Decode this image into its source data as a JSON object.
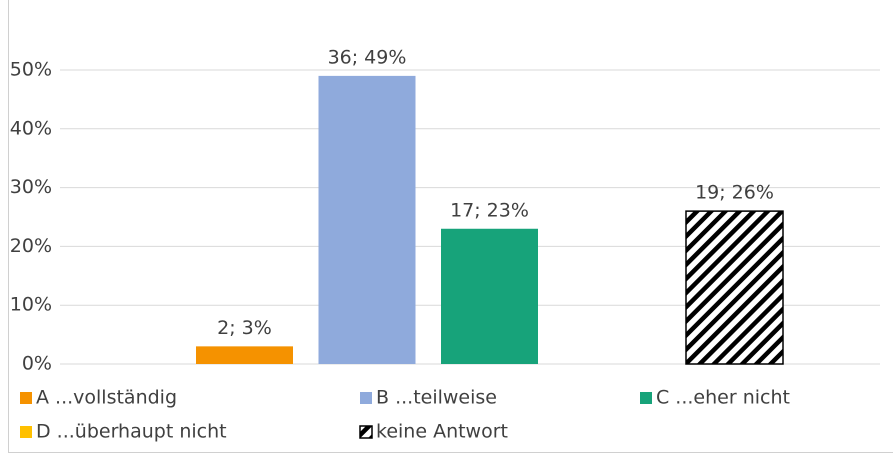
{
  "chart_data": {
    "type": "bar",
    "categories": [
      null
    ],
    "series": [
      {
        "name": "A ...vollständig",
        "color": "#f59200",
        "values": [
          3
        ],
        "value_labels": [
          "2; 3%"
        ]
      },
      {
        "name": "B ...teilweise",
        "color": "#8faadc",
        "values": [
          49
        ],
        "value_labels": [
          "36; 49%"
        ]
      },
      {
        "name": "C ...eher nicht",
        "color": "#17a37a",
        "values": [
          23
        ],
        "value_labels": [
          "17; 23%"
        ]
      },
      {
        "name": "D ...überhaupt nicht",
        "color": "#ffc000",
        "values": [
          null
        ],
        "value_labels": [
          null
        ]
      },
      {
        "name": "keine Antwort",
        "color": "#000000",
        "hatch": true,
        "values": [
          26
        ],
        "value_labels": [
          "19; 26%"
        ]
      }
    ],
    "ylim": [
      0,
      55
    ],
    "yticks": [
      {
        "value": 0,
        "label": "0%"
      },
      {
        "value": 10,
        "label": "10%"
      },
      {
        "value": 20,
        "label": "20%"
      },
      {
        "value": 30,
        "label": "30%"
      },
      {
        "value": 40,
        "label": "40%"
      },
      {
        "value": 50,
        "label": "50%"
      }
    ],
    "grid": true,
    "legend": "bottom"
  }
}
